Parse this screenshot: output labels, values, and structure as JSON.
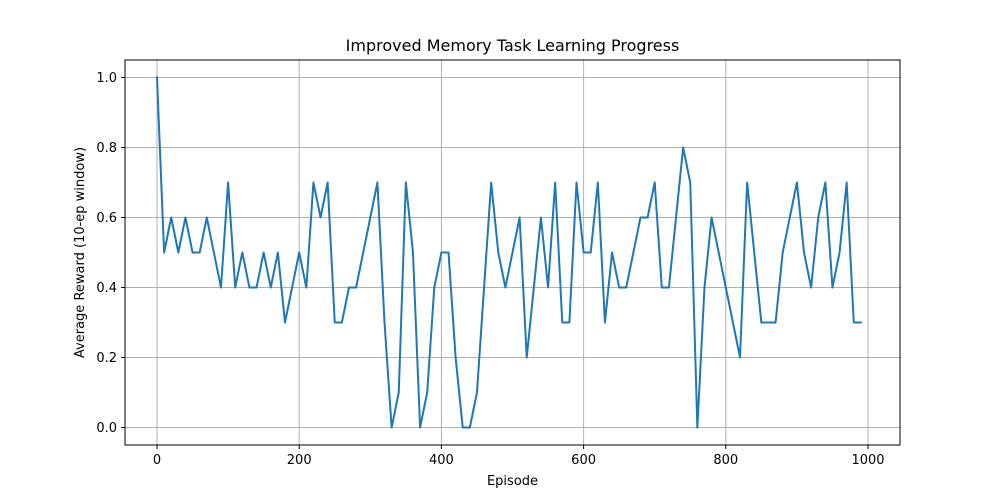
{
  "chart_data": {
    "type": "line",
    "title": "Improved Memory Task Learning Progress",
    "xlabel": "Episode",
    "ylabel": "Average Reward (10-ep window)",
    "xlim": [
      -45,
      1045
    ],
    "ylim": [
      -0.05,
      1.05
    ],
    "xticks": [
      0,
      200,
      400,
      600,
      800,
      1000
    ],
    "yticks": [
      0.0,
      0.2,
      0.4,
      0.6,
      0.8,
      1.0
    ],
    "xtick_labels": [
      "0",
      "200",
      "400",
      "600",
      "800",
      "1000"
    ],
    "ytick_labels": [
      "0.0",
      "0.2",
      "0.4",
      "0.6",
      "0.8",
      "1.0"
    ],
    "grid": true,
    "color": "#1f77b4",
    "series": [
      {
        "x": [
          0,
          10,
          20,
          30,
          40,
          50,
          60,
          70,
          80,
          90,
          100,
          110,
          120,
          130,
          140,
          150,
          160,
          170,
          180,
          190,
          200,
          210,
          220,
          230,
          240,
          250,
          260,
          270,
          280,
          290,
          300,
          310,
          320,
          330,
          340,
          350,
          360,
          370,
          380,
          390,
          400,
          410,
          420,
          430,
          440,
          450,
          460,
          470,
          480,
          490,
          500,
          510,
          520,
          530,
          540,
          550,
          560,
          570,
          580,
          590,
          600,
          610,
          620,
          630,
          640,
          650,
          660,
          670,
          680,
          690,
          700,
          710,
          720,
          730,
          740,
          750,
          760,
          770,
          780,
          790,
          800,
          810,
          820,
          830,
          840,
          850,
          860,
          870,
          880,
          890,
          900,
          910,
          920,
          930,
          940,
          950,
          960,
          970,
          980,
          990
        ],
        "values": [
          1.0,
          0.5,
          0.6,
          0.5,
          0.6,
          0.5,
          0.5,
          0.6,
          0.5,
          0.4,
          0.7,
          0.4,
          0.5,
          0.4,
          0.4,
          0.5,
          0.4,
          0.5,
          0.3,
          0.4,
          0.5,
          0.4,
          0.7,
          0.6,
          0.7,
          0.3,
          0.3,
          0.4,
          0.4,
          0.5,
          0.6,
          0.7,
          0.3,
          0.0,
          0.1,
          0.7,
          0.5,
          0.0,
          0.1,
          0.4,
          0.5,
          0.5,
          0.2,
          0.0,
          0.0,
          0.1,
          0.4,
          0.7,
          0.5,
          0.4,
          0.5,
          0.6,
          0.2,
          0.4,
          0.6,
          0.4,
          0.7,
          0.3,
          0.3,
          0.7,
          0.5,
          0.5,
          0.7,
          0.3,
          0.5,
          0.4,
          0.4,
          0.5,
          0.6,
          0.6,
          0.7,
          0.4,
          0.4,
          0.6,
          0.8,
          0.7,
          0.0,
          0.4,
          0.6,
          0.5,
          0.4,
          0.3,
          0.2,
          0.7,
          0.5,
          0.3,
          0.3,
          0.3,
          0.5,
          0.6,
          0.7,
          0.5,
          0.4,
          0.6,
          0.7,
          0.4,
          0.5,
          0.7,
          0.3,
          0.3
        ]
      }
    ]
  }
}
